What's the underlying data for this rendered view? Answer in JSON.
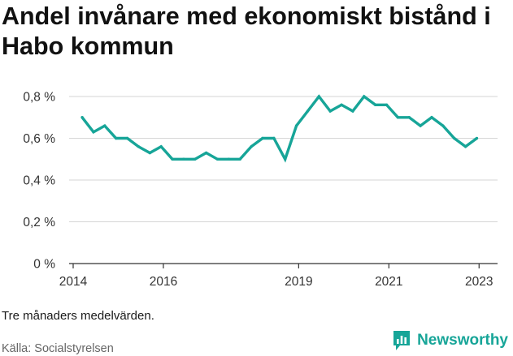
{
  "title": "Andel invånare med ekonomiskt bistånd i Habo kommun",
  "note": "Tre månaders medelvärden.",
  "source": "Källa: Socialstyrelsen",
  "brand": "Newsworthy",
  "colors": {
    "line": "#17a598",
    "grid": "#d6d6d6",
    "axis": "#333333",
    "brand": "#17a598"
  },
  "chart_data": {
    "type": "line",
    "title": "Andel invånare med ekonomiskt bistånd i Habo kommun",
    "xlabel": "",
    "ylabel": "",
    "xlim": [
      2014.0,
      2023.5
    ],
    "ylim": [
      0,
      0.8
    ],
    "x_ticks": [
      2014,
      2016,
      2019,
      2021,
      2023
    ],
    "x_tick_labels": [
      "2014",
      "2016",
      "2019",
      "2021",
      "2023"
    ],
    "y_ticks": [
      0,
      0.2,
      0.4,
      0.6,
      0.8
    ],
    "y_tick_labels": [
      "0 %",
      "0,2 %",
      "0,4 %",
      "0,6 %",
      "0,8 %"
    ],
    "grid": true,
    "series": [
      {
        "name": "Andel invånare med ekonomiskt bistånd",
        "x": [
          2014.29,
          2014.54,
          2014.79,
          2015.04,
          2015.29,
          2015.54,
          2015.79,
          2016.04,
          2016.29,
          2016.54,
          2016.79,
          2017.04,
          2017.29,
          2017.54,
          2017.79,
          2018.04,
          2018.29,
          2018.54,
          2018.79,
          2019.04,
          2019.29,
          2019.54,
          2019.79,
          2020.04,
          2020.29,
          2020.54,
          2020.79,
          2021.04,
          2021.29,
          2021.54,
          2021.79,
          2022.04,
          2022.29,
          2022.54,
          2022.79,
          2023.04
        ],
        "values": [
          0.7,
          0.63,
          0.66,
          0.6,
          0.6,
          0.56,
          0.53,
          0.56,
          0.5,
          0.5,
          0.5,
          0.53,
          0.5,
          0.5,
          0.5,
          0.56,
          0.6,
          0.6,
          0.5,
          0.66,
          0.73,
          0.8,
          0.73,
          0.76,
          0.73,
          0.8,
          0.76,
          0.76,
          0.7,
          0.7,
          0.66,
          0.7,
          0.66,
          0.6,
          0.56,
          0.6
        ]
      }
    ]
  }
}
